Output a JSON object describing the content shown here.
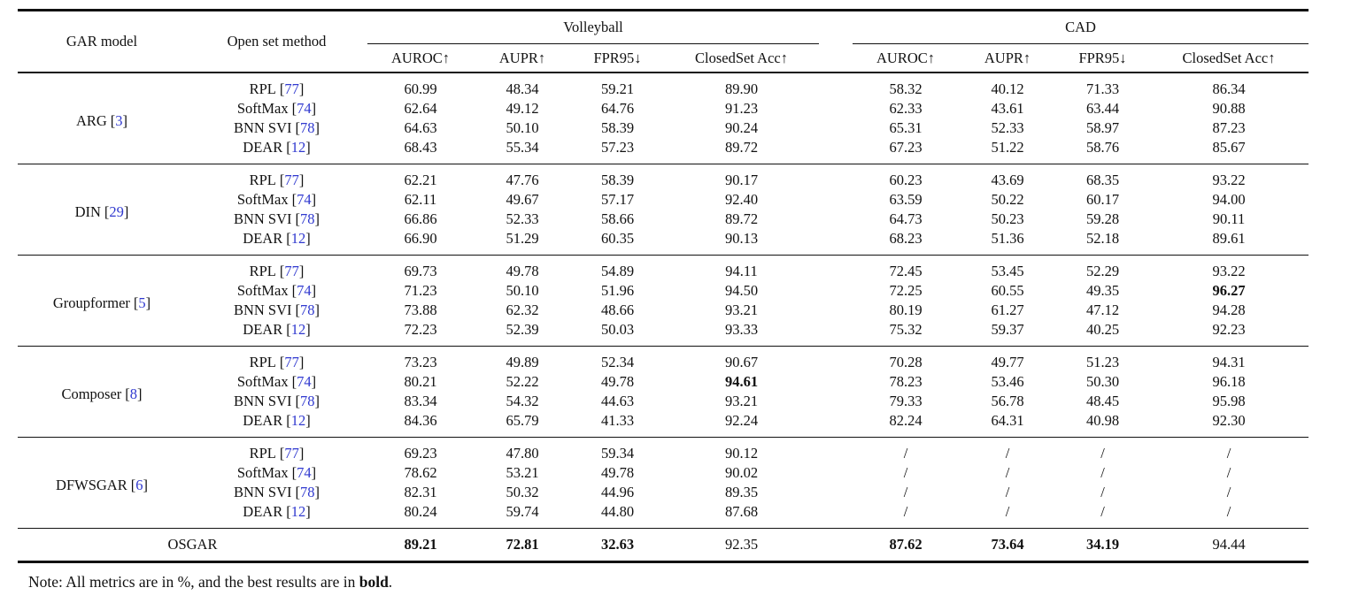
{
  "table": {
    "headers": {
      "gar_model": "GAR model",
      "open_set_method": "Open set method",
      "volleyball": "Volleyball",
      "cad": "CAD",
      "metrics": [
        "AUROC↑",
        "AUPR↑",
        "FPR95↓",
        "ClosedSet Acc↑"
      ]
    },
    "brackets": {
      "open": "[",
      "close": "]"
    },
    "groups": [
      {
        "model": "ARG",
        "ref": "3",
        "rows": [
          {
            "method": "RPL",
            "ref": "77",
            "volleyball": [
              "60.99",
              "48.34",
              "59.21",
              "89.90"
            ],
            "cad": [
              "58.32",
              "40.12",
              "71.33",
              "86.34"
            ]
          },
          {
            "method": "SoftMax",
            "ref": "74",
            "volleyball": [
              "62.64",
              "49.12",
              "64.76",
              "91.23"
            ],
            "cad": [
              "62.33",
              "43.61",
              "63.44",
              "90.88"
            ]
          },
          {
            "method": "BNN SVI",
            "ref": "78",
            "volleyball": [
              "64.63",
              "50.10",
              "58.39",
              "90.24"
            ],
            "cad": [
              "65.31",
              "52.33",
              "58.97",
              "87.23"
            ]
          },
          {
            "method": "DEAR",
            "ref": "12",
            "volleyball": [
              "68.43",
              "55.34",
              "57.23",
              "89.72"
            ],
            "cad": [
              "67.23",
              "51.22",
              "58.76",
              "85.67"
            ]
          }
        ]
      },
      {
        "model": "DIN",
        "ref": "29",
        "rows": [
          {
            "method": "RPL",
            "ref": "77",
            "volleyball": [
              "62.21",
              "47.76",
              "58.39",
              "90.17"
            ],
            "cad": [
              "60.23",
              "43.69",
              "68.35",
              "93.22"
            ]
          },
          {
            "method": "SoftMax",
            "ref": "74",
            "volleyball": [
              "62.11",
              "49.67",
              "57.17",
              "92.40"
            ],
            "cad": [
              "63.59",
              "50.22",
              "60.17",
              "94.00"
            ]
          },
          {
            "method": "BNN SVI",
            "ref": "78",
            "volleyball": [
              "66.86",
              "52.33",
              "58.66",
              "89.72"
            ],
            "cad": [
              "64.73",
              "50.23",
              "59.28",
              "90.11"
            ]
          },
          {
            "method": "DEAR",
            "ref": "12",
            "volleyball": [
              "66.90",
              "51.29",
              "60.35",
              "90.13"
            ],
            "cad": [
              "68.23",
              "51.36",
              "52.18",
              "89.61"
            ]
          }
        ]
      },
      {
        "model": "Groupformer",
        "ref": "5",
        "rows": [
          {
            "method": "RPL",
            "ref": "77",
            "volleyball": [
              "69.73",
              "49.78",
              "54.89",
              "94.11"
            ],
            "cad": [
              "72.45",
              "53.45",
              "52.29",
              "93.22"
            ]
          },
          {
            "method": "SoftMax",
            "ref": "74",
            "volleyball": [
              "71.23",
              "50.10",
              "51.96",
              "94.50"
            ],
            "cad": [
              "72.25",
              "60.55",
              "49.35",
              "96.27"
            ],
            "bold": {
              "cad": [
                3
              ]
            }
          },
          {
            "method": "BNN SVI",
            "ref": "78",
            "volleyball": [
              "73.88",
              "62.32",
              "48.66",
              "93.21"
            ],
            "cad": [
              "80.19",
              "61.27",
              "47.12",
              "94.28"
            ]
          },
          {
            "method": "DEAR",
            "ref": "12",
            "volleyball": [
              "72.23",
              "52.39",
              "50.03",
              "93.33"
            ],
            "cad": [
              "75.32",
              "59.37",
              "40.25",
              "92.23"
            ]
          }
        ]
      },
      {
        "model": "Composer",
        "ref": "8",
        "rows": [
          {
            "method": "RPL",
            "ref": "77",
            "volleyball": [
              "73.23",
              "49.89",
              "52.34",
              "90.67"
            ],
            "cad": [
              "70.28",
              "49.77",
              "51.23",
              "94.31"
            ]
          },
          {
            "method": "SoftMax",
            "ref": "74",
            "volleyball": [
              "80.21",
              "52.22",
              "49.78",
              "94.61"
            ],
            "cad": [
              "78.23",
              "53.46",
              "50.30",
              "96.18"
            ],
            "bold": {
              "volleyball": [
                3
              ]
            }
          },
          {
            "method": "BNN SVI",
            "ref": "78",
            "volleyball": [
              "83.34",
              "54.32",
              "44.63",
              "93.21"
            ],
            "cad": [
              "79.33",
              "56.78",
              "48.45",
              "95.98"
            ]
          },
          {
            "method": "DEAR",
            "ref": "12",
            "volleyball": [
              "84.36",
              "65.79",
              "41.33",
              "92.24"
            ],
            "cad": [
              "82.24",
              "64.31",
              "40.98",
              "92.30"
            ]
          }
        ]
      },
      {
        "model": "DFWSGAR",
        "ref": "6",
        "rows": [
          {
            "method": "RPL",
            "ref": "77",
            "volleyball": [
              "69.23",
              "47.80",
              "59.34",
              "90.12"
            ],
            "cad": [
              "/",
              "/",
              "/",
              "/"
            ]
          },
          {
            "method": "SoftMax",
            "ref": "74",
            "volleyball": [
              "78.62",
              "53.21",
              "49.78",
              "90.02"
            ],
            "cad": [
              "/",
              "/",
              "/",
              "/"
            ]
          },
          {
            "method": "BNN SVI",
            "ref": "78",
            "volleyball": [
              "82.31",
              "50.32",
              "44.96",
              "89.35"
            ],
            "cad": [
              "/",
              "/",
              "/",
              "/"
            ]
          },
          {
            "method": "DEAR",
            "ref": "12",
            "volleyball": [
              "80.24",
              "59.74",
              "44.80",
              "87.68"
            ],
            "cad": [
              "/",
              "/",
              "/",
              "/"
            ]
          }
        ]
      }
    ],
    "footer": {
      "label": "OSGAR",
      "volleyball": [
        "89.21",
        "72.81",
        "32.63",
        "92.35"
      ],
      "cad": [
        "87.62",
        "73.64",
        "34.19",
        "94.44"
      ],
      "bold": {
        "volleyball": [
          0,
          1,
          2
        ],
        "cad": [
          0,
          1,
          2
        ]
      }
    }
  },
  "note": {
    "prefix": "Note: All metrics are in %, and the best results are in ",
    "bold_word": "bold",
    "suffix": "."
  },
  "colors": {
    "citation_blue": "#3039cf",
    "text": "#111111",
    "background": "#ffffff"
  }
}
